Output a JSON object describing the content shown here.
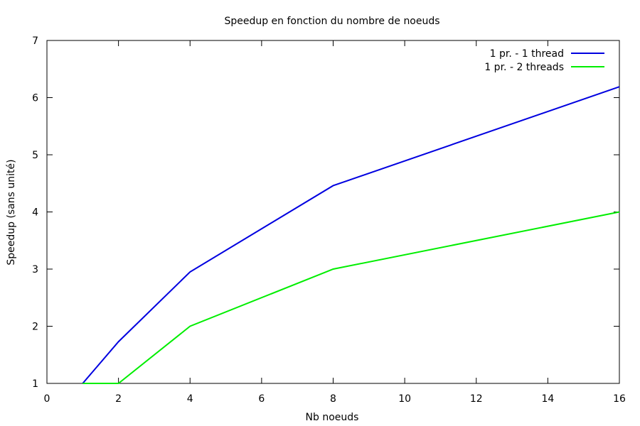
{
  "chart_data": {
    "type": "line",
    "title": "Speedup en fonction du nombre de noeuds",
    "xlabel": "Nb noeuds",
    "ylabel": "Speedup (sans unité)",
    "xlim": [
      0,
      16
    ],
    "ylim": [
      1,
      7
    ],
    "xticks": [
      0,
      2,
      4,
      6,
      8,
      10,
      12,
      14,
      16
    ],
    "yticks": [
      1,
      2,
      3,
      4,
      5,
      6,
      7
    ],
    "grid": false,
    "legend_position": "top-right",
    "series": [
      {
        "name": "1 pr. - 1 thread",
        "color": "#0000e0",
        "points": [
          [
            1,
            1.0
          ],
          [
            2,
            1.73
          ],
          [
            4,
            2.95
          ],
          [
            8,
            4.46
          ],
          [
            16,
            6.19
          ]
        ]
      },
      {
        "name": "1 pr. - 2 threads",
        "color": "#00ee00",
        "points": [
          [
            1,
            1.0
          ],
          [
            2,
            1.0
          ],
          [
            4,
            2.0
          ],
          [
            8,
            3.0
          ],
          [
            16,
            4.0
          ]
        ]
      }
    ]
  }
}
